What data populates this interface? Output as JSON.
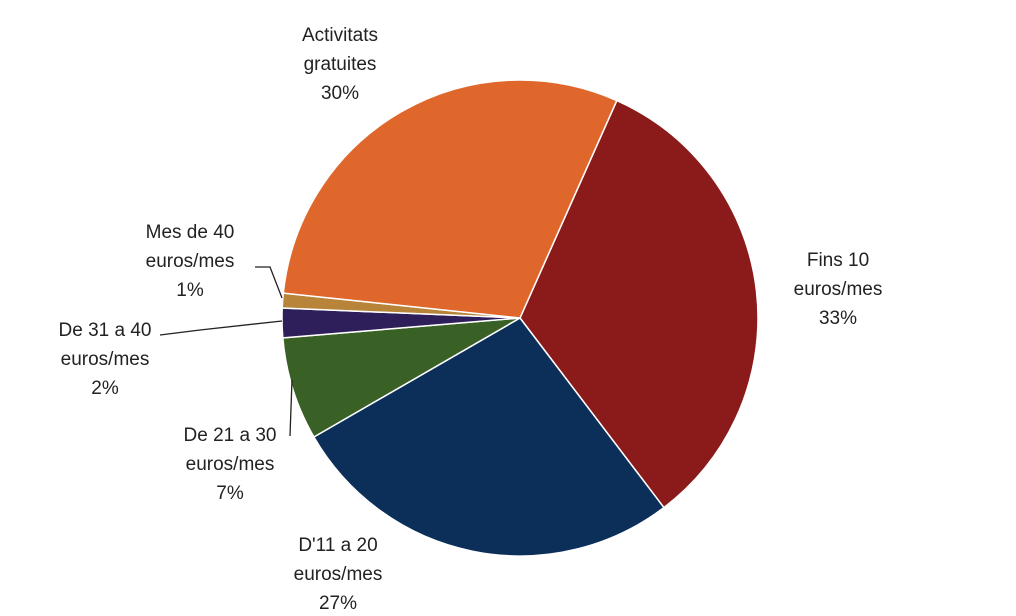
{
  "chart_data": {
    "type": "pie",
    "categories": [
      "Fins 10 euros/mes",
      "D'11 a 20 euros/mes",
      "De 21 a 30 euros/mes",
      "De 31 a 40 euros/mes",
      "Mes de 40 euros/mes",
      "Activitats gratuites"
    ],
    "values": [
      33,
      27,
      7,
      2,
      1,
      30
    ],
    "value_labels": [
      "33%",
      "27%",
      "7%",
      "2%",
      "1%",
      "30%"
    ],
    "colors": [
      "#8b1a1a",
      "#0c2f5a",
      "#3a6125",
      "#2e1f5a",
      "#b8843a",
      "#e0672b"
    ]
  }
}
